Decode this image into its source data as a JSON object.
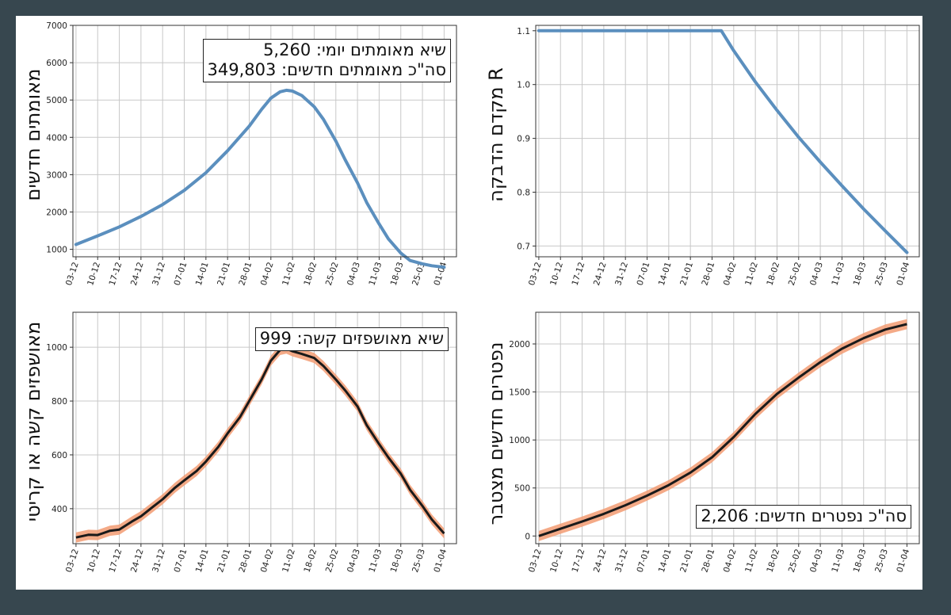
{
  "chart_data": [
    {
      "type": "line",
      "ylabel": "מאומתים חדשים",
      "ylim": [
        800,
        7000
      ],
      "yticks": [
        1000,
        2000,
        3000,
        4000,
        5000,
        6000,
        7000
      ],
      "x_ticks": [
        "03-12",
        "10-12",
        "17-12",
        "24-12",
        "31-12",
        "07-01",
        "14-01",
        "21-01",
        "28-01",
        "04-02",
        "11-02",
        "18-02",
        "25-02",
        "04-03",
        "11-03",
        "18-03",
        "25-03",
        "01-04"
      ],
      "annotation": [
        "שיא מאומתים יומי: 5,260",
        "סה\"כ מאומתים חדשים: 349,803"
      ],
      "series": [
        {
          "color": "#5b8fbe",
          "x": [
            "03-12",
            "10-12",
            "17-12",
            "24-12",
            "31-12",
            "07-01",
            "14-01",
            "21-01",
            "28-01",
            "01-02",
            "04-02",
            "07-02",
            "09-02",
            "11-02",
            "14-02",
            "18-02",
            "21-02",
            "25-02",
            "28-02",
            "04-03",
            "07-03",
            "11-03",
            "14-03",
            "18-03",
            "21-03",
            "25-03",
            "28-03",
            "01-04"
          ],
          "y": [
            1130,
            1360,
            1600,
            1880,
            2200,
            2580,
            3050,
            3640,
            4300,
            4750,
            5050,
            5220,
            5260,
            5240,
            5120,
            4820,
            4480,
            3900,
            3400,
            2780,
            2250,
            1680,
            1280,
            900,
            700,
            610,
            560,
            520
          ]
        }
      ]
    },
    {
      "type": "line",
      "ylabel": "מקדם הדבקה R",
      "ylim": [
        0.68,
        1.11
      ],
      "yticks": [
        0.7,
        0.8,
        0.9,
        1.0,
        1.1
      ],
      "x_ticks": [
        "03-12",
        "10-12",
        "17-12",
        "24-12",
        "31-12",
        "07-01",
        "14-01",
        "21-01",
        "28-01",
        "04-02",
        "11-02",
        "18-02",
        "25-02",
        "04-03",
        "11-03",
        "18-03",
        "25-03",
        "01-04"
      ],
      "series": [
        {
          "color": "#5b8fbe",
          "x": [
            "03-12",
            "31-01",
            "04-02",
            "11-02",
            "18-02",
            "25-02",
            "04-03",
            "11-03",
            "18-03",
            "25-03",
            "01-04"
          ],
          "y": [
            1.1,
            1.1,
            1.063,
            1.005,
            0.952,
            0.902,
            0.856,
            0.812,
            0.769,
            0.728,
            0.688
          ]
        }
      ]
    },
    {
      "type": "line",
      "ylabel": "מאושפזים קשה או קריטי",
      "ylim": [
        270,
        1130
      ],
      "yticks": [
        400,
        600,
        800,
        1000
      ],
      "x_ticks": [
        "03-12",
        "10-12",
        "17-12",
        "24-12",
        "31-12",
        "07-01",
        "14-01",
        "21-01",
        "28-01",
        "04-02",
        "11-02",
        "18-02",
        "25-02",
        "04-03",
        "11-03",
        "18-03",
        "25-03",
        "01-04"
      ],
      "annotation": [
        "שיא מאושפזים קשה: 999"
      ],
      "series": [
        {
          "color": "#1a1a1a",
          "band_color": "#f29b72",
          "x": [
            "03-12",
            "07-12",
            "10-12",
            "14-12",
            "17-12",
            "21-12",
            "24-12",
            "28-12",
            "31-12",
            "04-01",
            "07-01",
            "11-01",
            "14-01",
            "18-01",
            "21-01",
            "25-01",
            "28-01",
            "01-02",
            "04-02",
            "07-02",
            "09-02",
            "11-02",
            "14-02",
            "18-02",
            "21-02",
            "25-02",
            "28-02",
            "04-03",
            "07-03",
            "11-03",
            "14-03",
            "18-03",
            "21-03",
            "25-03",
            "28-03",
            "01-04"
          ],
          "y": [
            293,
            303,
            302,
            318,
            322,
            352,
            372,
            408,
            435,
            478,
            505,
            540,
            575,
            630,
            680,
            740,
            800,
            880,
            950,
            990,
            995,
            985,
            975,
            960,
            930,
            880,
            840,
            780,
            710,
            640,
            590,
            530,
            470,
            410,
            360,
            308
          ]
        }
      ]
    },
    {
      "type": "line",
      "ylabel": "נפטרים חדשים מצטבר",
      "ylim": [
        -80,
        2330
      ],
      "yticks": [
        0,
        500,
        1000,
        1500,
        2000
      ],
      "x_ticks": [
        "03-12",
        "10-12",
        "17-12",
        "24-12",
        "31-12",
        "07-01",
        "14-01",
        "21-01",
        "28-01",
        "04-02",
        "11-02",
        "18-02",
        "25-02",
        "04-03",
        "11-03",
        "18-03",
        "25-03",
        "01-04"
      ],
      "annotation": [
        "סה\"כ נפטרים חדשים: 2,206"
      ],
      "series": [
        {
          "color": "#1a1a1a",
          "band_color": "#f29b72",
          "x": [
            "03-12",
            "10-12",
            "17-12",
            "24-12",
            "31-12",
            "07-01",
            "14-01",
            "21-01",
            "28-01",
            "04-02",
            "11-02",
            "18-02",
            "25-02",
            "04-03",
            "11-03",
            "18-03",
            "25-03",
            "01-04"
          ],
          "y": [
            0,
            75,
            150,
            230,
            320,
            420,
            530,
            660,
            820,
            1030,
            1270,
            1480,
            1650,
            1810,
            1950,
            2060,
            2150,
            2206
          ]
        }
      ]
    }
  ]
}
